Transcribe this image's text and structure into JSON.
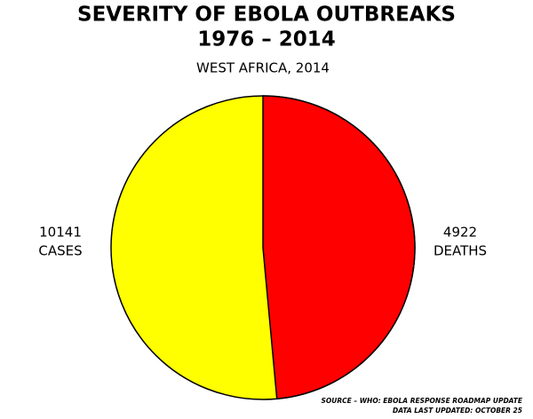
{
  "chart_data": {
    "type": "pie",
    "title": [
      "SEVERITY OF EBOLA OUTBREAKS",
      "1976 – 2014"
    ],
    "subtitle": "WEST AFRICA, 2014",
    "categories": [
      "CASES",
      "DEATHS"
    ],
    "values": [
      10141,
      4922
    ],
    "colors": [
      "#ffff00",
      "#ff0000"
    ],
    "source": [
      "SOURCE – WHO: EBOLA RESPONSE ROADMAP UPDATE",
      "DATA LAST UPDATED: OCTOBER 25"
    ]
  }
}
